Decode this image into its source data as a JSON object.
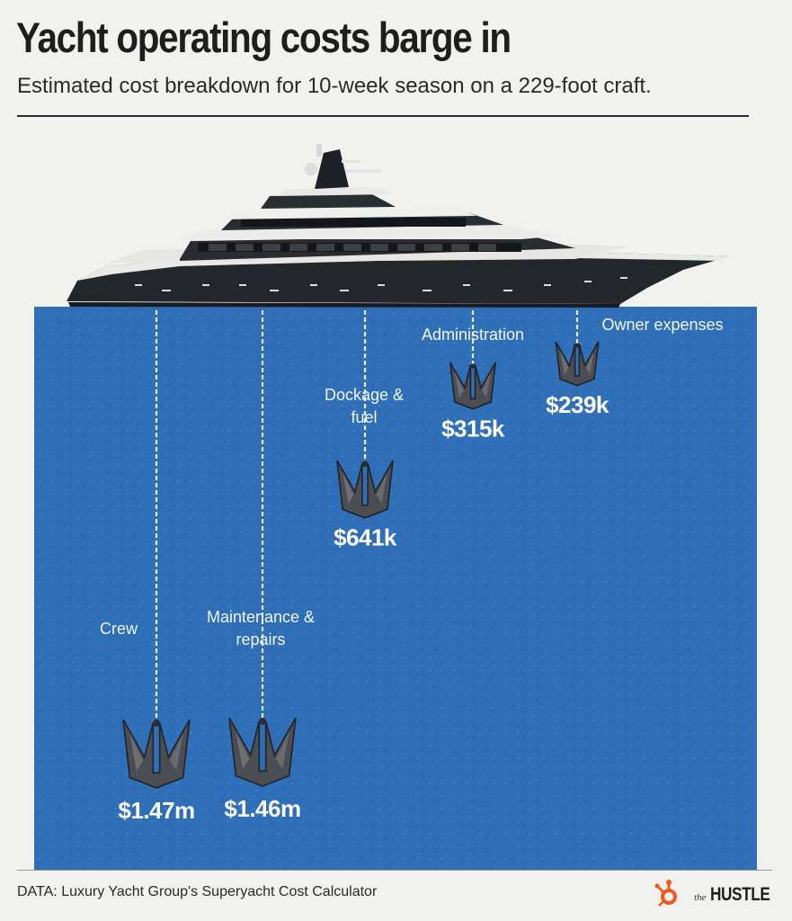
{
  "header": {
    "title": "Yacht operating costs barge in",
    "subtitle": "Estimated cost breakdown for 10-week season on a 229-foot craft."
  },
  "footer": {
    "source": "DATA: Luxury Yacht Group's Superyacht Cost Calculator",
    "logo_the": "the",
    "logo_word": "HUSTLE"
  },
  "colors": {
    "water": "#2e6fb7",
    "water_speckle": "#4a8bd0",
    "hull": "#24262b",
    "anchor": "#4b4d52",
    "chain": "#e8edf2",
    "label": "#f2f5f8",
    "brand_orange": "#f05a1e"
  },
  "chart_data": {
    "type": "bar",
    "encoding": "anchor depth below waterline represents cost",
    "categories": [
      "Crew",
      "Maintenance & repairs",
      "Dockage & fuel",
      "Administration",
      "Owner expenses"
    ],
    "category_lines": [
      [
        "Crew"
      ],
      [
        "Maintenance &",
        "repairs"
      ],
      [
        "Dockage &",
        "fuel"
      ],
      [
        "Administration"
      ],
      [
        "Owner expenses"
      ]
    ],
    "values": [
      1470000,
      1460000,
      641000,
      315000,
      239000
    ],
    "value_labels": [
      "$1.47m",
      "$1.46m",
      "$641k",
      "$315k",
      "$239k"
    ],
    "unit": "USD",
    "title": "Yacht operating costs barge in",
    "xlabel": "",
    "ylabel": "",
    "grid": false,
    "legend": "none"
  }
}
